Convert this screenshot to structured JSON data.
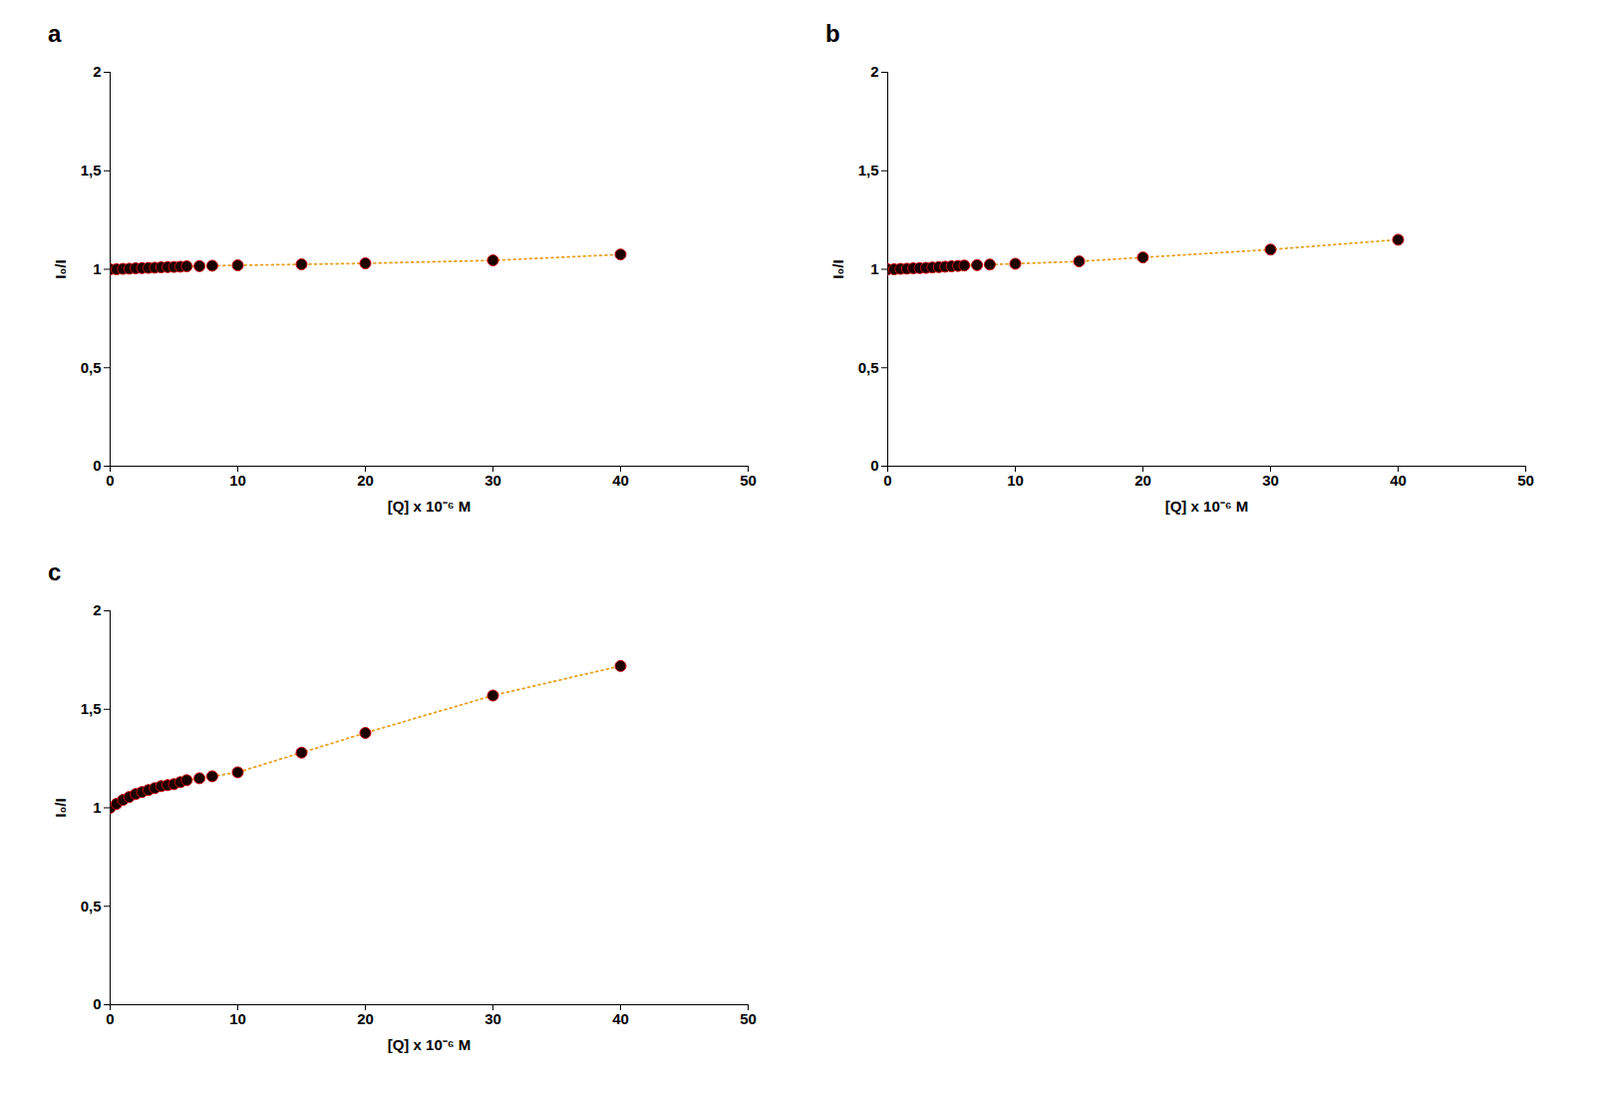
{
  "chart_data": [
    {
      "type": "line",
      "title": "a",
      "x_label": "[Q] x 10⁻⁶ M",
      "y_label": "I₀/I",
      "x": [
        0,
        0.5,
        1.0,
        1.5,
        2.0,
        2.5,
        3.0,
        3.5,
        4.0,
        4.5,
        5.0,
        5.5,
        6.0,
        7.0,
        8.0,
        10.0,
        15.0,
        20.0,
        30.0,
        40.0
      ],
      "values": [
        1.0,
        1.0,
        1.002,
        1.003,
        1.005,
        1.006,
        1.007,
        1.008,
        1.01,
        1.011,
        1.012,
        1.013,
        1.015,
        1.016,
        1.018,
        1.02,
        1.025,
        1.03,
        1.045,
        1.075
      ],
      "color": "#e8a020",
      "marker": "circle",
      "line_style": "dotted",
      "grid": false,
      "xlim": [
        0,
        50
      ],
      "ylim": [
        0,
        2
      ],
      "xticks": [
        0,
        10,
        20,
        30,
        40,
        50
      ],
      "yticks": [
        0,
        {
          "value": 0.5,
          "label": "0,5"
        },
        1,
        {
          "value": 1.5,
          "label": "1,5"
        },
        2
      ]
    },
    {
      "type": "line",
      "title": "b",
      "x_label": "[Q] x 10⁻⁶ M",
      "y_label": "I₀/I",
      "x": [
        0,
        0.5,
        1.0,
        1.5,
        2.0,
        2.5,
        3.0,
        3.5,
        4.0,
        4.5,
        5.0,
        5.5,
        6.0,
        7.0,
        8.0,
        10.0,
        15.0,
        20.0,
        30.0,
        40.0
      ],
      "values": [
        1.0,
        1.0,
        1.002,
        1.003,
        1.005,
        1.006,
        1.007,
        1.009,
        1.011,
        1.013,
        1.015,
        1.017,
        1.019,
        1.021,
        1.024,
        1.028,
        1.04,
        1.06,
        1.1,
        1.15
      ],
      "color": "#e8a020",
      "marker": "circle",
      "line_style": "dotted",
      "grid": false,
      "xlim": [
        0,
        50
      ],
      "ylim": [
        0,
        2
      ],
      "xticks": [
        0,
        10,
        20,
        30,
        40,
        50
      ],
      "yticks": [
        0,
        {
          "value": 0.5,
          "label": "0,5"
        },
        1,
        {
          "value": 1.5,
          "label": "1,5"
        },
        2
      ]
    },
    {
      "type": "line",
      "title": "c",
      "x_label": "[Q] x 10⁻⁶ M",
      "y_label": "I₀/I",
      "x": [
        0,
        0.5,
        1.0,
        1.5,
        2.0,
        2.5,
        3.0,
        3.5,
        4.0,
        4.5,
        5.0,
        5.5,
        6.0,
        7.0,
        8.0,
        10.0,
        15.0,
        20.0,
        30.0,
        40.0
      ],
      "values": [
        1.0,
        1.02,
        1.04,
        1.055,
        1.07,
        1.08,
        1.09,
        1.1,
        1.11,
        1.115,
        1.12,
        1.13,
        1.14,
        1.15,
        1.16,
        1.18,
        1.28,
        1.38,
        1.57,
        1.72
      ],
      "color": "#e8a020",
      "marker": "circle",
      "line_style": "dotted",
      "grid": false,
      "xlim": [
        0,
        50
      ],
      "ylim": [
        0,
        2
      ],
      "xticks": [
        0,
        10,
        20,
        30,
        40,
        50
      ],
      "yticks": [
        0,
        {
          "value": 0.5,
          "label": "0,5"
        },
        1,
        {
          "value": 1.5,
          "label": "1,5"
        },
        2
      ]
    }
  ]
}
